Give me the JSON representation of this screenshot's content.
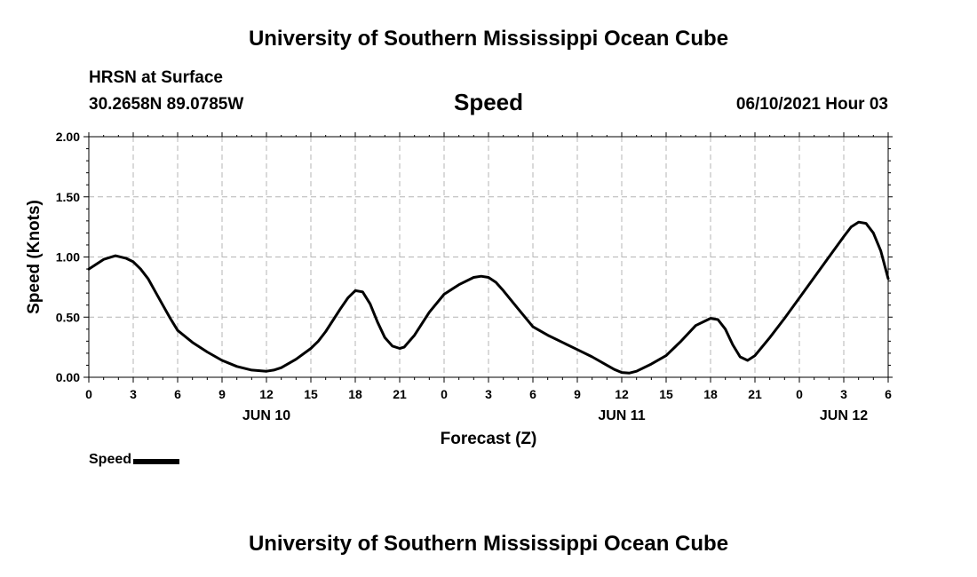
{
  "header": {
    "title": "University of Southern Mississippi Ocean Cube",
    "station": "HRSN at Surface",
    "coords": "30.2658N  89.0785W",
    "chart_title": "Speed",
    "datetime": "06/10/2021 Hour 03"
  },
  "footer": {
    "title": "University of Southern Mississippi Ocean Cube"
  },
  "legend": {
    "label": "Speed"
  },
  "colors": {
    "line": "#000000",
    "grid": "#b4b4b4"
  },
  "chart_data": {
    "type": "line",
    "title": "Speed",
    "xlabel": "Forecast (Z)",
    "ylabel": "Speed (Knots)",
    "xlim": [
      0,
      54
    ],
    "ylim": [
      0,
      2
    ],
    "x_unit": "forecast hours",
    "x_ticks": [
      0,
      3,
      6,
      9,
      12,
      15,
      18,
      21,
      24,
      27,
      30,
      33,
      36,
      39,
      42,
      45,
      48,
      51,
      54
    ],
    "x_tick_labels": [
      "0",
      "3",
      "6",
      "9",
      "12",
      "15",
      "18",
      "21",
      "0",
      "3",
      "6",
      "9",
      "12",
      "15",
      "18",
      "21",
      "0",
      "3",
      "6"
    ],
    "y_ticks": [
      0,
      0.5,
      1,
      1.5,
      2
    ],
    "y_tick_labels": [
      "0.00",
      "0.50",
      "1.00",
      "1.50",
      "2.00"
    ],
    "day_labels": [
      {
        "x": 12,
        "label": "JUN 10"
      },
      {
        "x": 36,
        "label": "JUN 11"
      },
      {
        "x": 51,
        "label": "JUN 12"
      }
    ],
    "grid": true,
    "legend_position": "bottom-left",
    "series": [
      {
        "name": "Speed",
        "x": [
          0,
          1,
          1.8,
          2.5,
          3,
          3.5,
          4,
          4.5,
          5,
          5.5,
          6,
          7,
          8,
          9,
          10,
          11,
          12,
          12.5,
          13,
          14,
          15,
          15.5,
          16,
          17,
          17.5,
          18,
          18.5,
          19,
          19.5,
          20,
          20.5,
          21,
          21.3,
          22,
          23,
          24,
          25,
          26,
          26.5,
          27,
          27.5,
          28,
          29,
          30,
          31,
          32,
          33,
          34,
          35,
          35.5,
          36,
          36.5,
          37,
          38,
          39,
          40,
          41,
          42,
          42.5,
          43,
          43.5,
          44,
          44.5,
          45,
          46,
          47,
          48,
          49,
          50,
          51,
          51.5,
          52,
          52.5,
          53,
          53.5,
          54
        ],
        "values": [
          0.9,
          0.98,
          1.01,
          0.99,
          0.96,
          0.9,
          0.82,
          0.71,
          0.6,
          0.49,
          0.39,
          0.29,
          0.21,
          0.14,
          0.09,
          0.06,
          0.05,
          0.06,
          0.08,
          0.15,
          0.24,
          0.3,
          0.38,
          0.57,
          0.66,
          0.72,
          0.71,
          0.61,
          0.46,
          0.33,
          0.26,
          0.24,
          0.25,
          0.35,
          0.54,
          0.69,
          0.77,
          0.83,
          0.84,
          0.83,
          0.79,
          0.72,
          0.57,
          0.42,
          0.35,
          0.29,
          0.23,
          0.17,
          0.1,
          0.065,
          0.04,
          0.035,
          0.05,
          0.11,
          0.18,
          0.3,
          0.43,
          0.49,
          0.48,
          0.4,
          0.27,
          0.17,
          0.14,
          0.18,
          0.33,
          0.49,
          0.66,
          0.83,
          1.0,
          1.17,
          1.25,
          1.29,
          1.28,
          1.2,
          1.05,
          0.82
        ]
      }
    ]
  }
}
